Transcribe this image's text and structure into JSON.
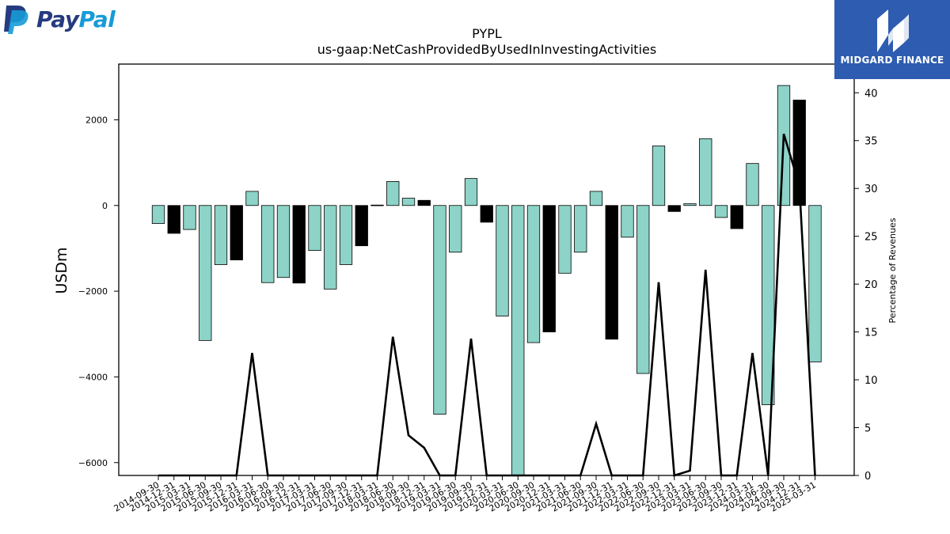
{
  "logos": {
    "paypal": {
      "part1": "Pay",
      "part2": "Pal",
      "color1": "#253b80",
      "color2": "#179bd7"
    },
    "midgard": {
      "name": "MIDGARD FINANCE",
      "bg": "#2d5cb0"
    }
  },
  "chart_data": {
    "type": "bar",
    "title": "PYPL",
    "subtitle": "us-gaap:NetCashProvidedByUsedInInvestingActivities",
    "ylabel": "USDm",
    "y2label": "Percentage of Revenues",
    "ylim": [
      -6300,
      3300
    ],
    "y2lim": [
      0,
      43
    ],
    "yticks": [
      2000,
      0,
      -2000,
      -4000,
      -6000
    ],
    "y2ticks": [
      0,
      5,
      10,
      15,
      20,
      25,
      30,
      35,
      40
    ],
    "colors": {
      "q": "#8dd3c7",
      "fy": "#000000",
      "edge": "#000000",
      "line": "#000000"
    },
    "categories": [
      "2014-09-30",
      "2014-12-31",
      "2015-03-31",
      "2015-06-30",
      "2015-09-30",
      "2015-12-31",
      "2016-03-31",
      "2016-06-30",
      "2016-09-30",
      "2016-12-31",
      "2017-03-31",
      "2017-06-30",
      "2017-09-30",
      "2017-12-31",
      "2018-03-31",
      "2018-06-30",
      "2018-09-30",
      "2018-12-31",
      "2019-03-31",
      "2019-06-30",
      "2019-09-30",
      "2019-12-31",
      "2020-03-31",
      "2020-06-30",
      "2020-09-30",
      "2020-12-31",
      "2021-03-31",
      "2021-06-30",
      "2021-09-30",
      "2021-12-31",
      "2022-03-31",
      "2022-06-30",
      "2022-09-30",
      "2022-12-31",
      "2023-03-31",
      "2023-06-30",
      "2023-09-30",
      "2023-12-31",
      "2024-03-31",
      "2024-06-30",
      "2024-09-30",
      "2024-12-31",
      "2025-03-31"
    ],
    "values": [
      -420,
      -650,
      -560,
      -3150,
      -1380,
      -1270,
      330,
      -1800,
      -1680,
      -1810,
      -1050,
      -1950,
      -1380,
      -940,
      10,
      560,
      170,
      120,
      -4870,
      -1090,
      630,
      -390,
      -2580,
      -6300,
      -3200,
      -2950,
      -1580,
      -1090,
      330,
      -3120,
      -740,
      -3920,
      1390,
      -140,
      40,
      1560,
      -280,
      -540,
      980,
      -4650,
      2800,
      2460,
      -3650
    ],
    "is_fy": [
      false,
      true,
      false,
      false,
      false,
      true,
      false,
      false,
      false,
      true,
      false,
      false,
      false,
      true,
      false,
      false,
      false,
      true,
      false,
      false,
      false,
      true,
      false,
      false,
      false,
      true,
      false,
      false,
      false,
      true,
      false,
      false,
      false,
      true,
      false,
      false,
      false,
      true,
      false,
      false,
      false,
      true,
      false
    ],
    "pct_of_revenues": [
      0,
      0,
      0,
      0,
      0,
      0,
      12.8,
      0,
      0,
      0,
      0,
      0,
      0,
      0,
      0,
      14.5,
      4.2,
      2.9,
      0,
      0,
      14.3,
      0,
      0,
      0,
      0,
      0,
      0,
      0,
      5.4,
      0,
      0,
      0,
      20.2,
      0,
      0.5,
      21.5,
      0,
      0,
      12.8,
      0,
      35.7,
      30.3,
      0
    ]
  }
}
